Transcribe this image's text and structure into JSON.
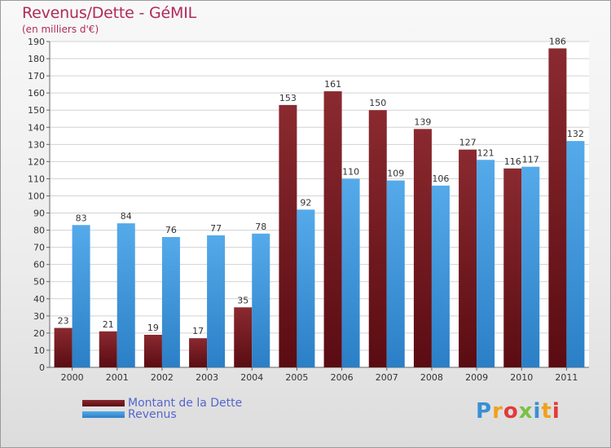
{
  "title": "Revenus/Dette - GéMIL",
  "subtitle": "(en milliers d'€)",
  "legend": {
    "debt": "Montant de la Dette",
    "revenue": "Revenus"
  },
  "logo": "Proxiti",
  "colors": {
    "debt": "#7a1e24",
    "revenue": "#3d9ae0",
    "title": "#b02a5b"
  },
  "chart_data": {
    "type": "bar",
    "categories": [
      "2000",
      "2001",
      "2002",
      "2003",
      "2004",
      "2005",
      "2006",
      "2007",
      "2008",
      "2009",
      "2010",
      "2011"
    ],
    "series": [
      {
        "name": "Montant de la Dette",
        "values": [
          23,
          21,
          19,
          17,
          35,
          153,
          161,
          150,
          139,
          127,
          116,
          186
        ]
      },
      {
        "name": "Revenus",
        "values": [
          83,
          84,
          76,
          77,
          78,
          92,
          110,
          109,
          106,
          121,
          117,
          132
        ]
      }
    ],
    "ylim": [
      0,
      190
    ],
    "yticks": [
      0,
      10,
      20,
      30,
      40,
      50,
      60,
      70,
      80,
      90,
      100,
      110,
      120,
      130,
      140,
      150,
      160,
      170,
      180,
      190
    ],
    "grid": true,
    "legend_position": "bottom-left"
  }
}
